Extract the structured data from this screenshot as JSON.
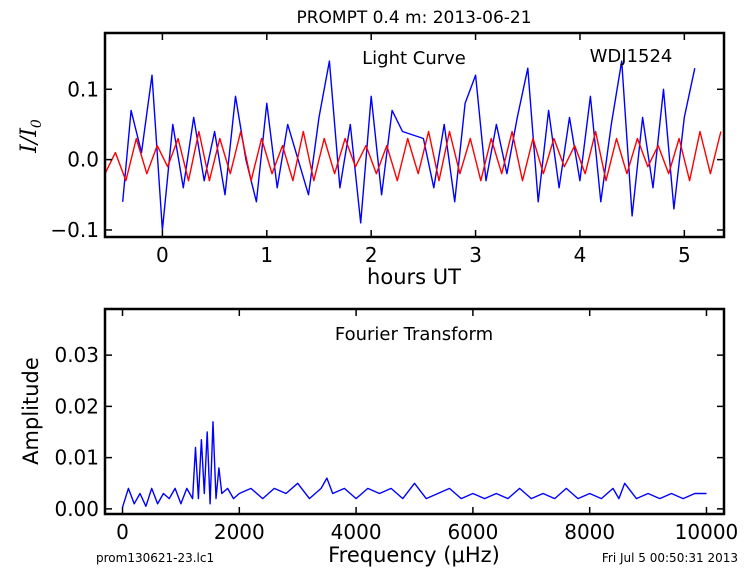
{
  "figure": {
    "title": "PROMPT 0.4 m:  2013-06-21",
    "filename": "prom130621-23.lc1",
    "timestamp": "Fri Jul  5 00:50:31 2013"
  },
  "chart_data": [
    {
      "type": "line",
      "title": "Light Curve",
      "annotation": "WDJ1524",
      "xlabel": "hours UT",
      "ylabel": "I/I0",
      "xlim": [
        -0.55,
        5.38
      ],
      "ylim": [
        -0.11,
        0.18
      ],
      "xticks": [
        0,
        1,
        2,
        3,
        4,
        5
      ],
      "yticks": [
        -0.1,
        0.0,
        0.1
      ],
      "ytick_labels": [
        "−0.1",
        "0.0",
        "0.1"
      ],
      "grid": false,
      "series": [
        {
          "color": "#0000ff",
          "x": [
            -0.38,
            -0.3,
            -0.2,
            -0.1,
            0.0,
            0.1,
            0.2,
            0.3,
            0.4,
            0.5,
            0.6,
            0.7,
            0.8,
            0.9,
            1.0,
            1.1,
            1.2,
            1.3,
            1.4,
            1.5,
            1.6,
            1.7,
            1.8,
            1.9,
            2.0,
            2.1,
            2.2,
            2.3,
            2.5,
            2.6,
            2.7,
            2.8,
            2.9,
            3.0,
            3.1,
            3.2,
            3.3,
            3.4,
            3.5,
            3.6,
            3.7,
            3.8,
            3.9,
            4.0,
            4.1,
            4.2,
            4.3,
            4.4,
            4.5,
            4.6,
            4.7,
            4.8,
            4.9,
            5.0,
            5.1
          ],
          "y": [
            -0.06,
            0.07,
            0.01,
            0.12,
            -0.1,
            0.05,
            -0.04,
            0.06,
            -0.03,
            0.04,
            -0.05,
            0.09,
            0.0,
            -0.06,
            0.08,
            -0.04,
            0.05,
            0.0,
            -0.05,
            0.06,
            0.14,
            -0.04,
            0.05,
            -0.09,
            0.09,
            -0.05,
            0.07,
            0.04,
            0.03,
            -0.04,
            0.05,
            -0.06,
            0.08,
            0.12,
            -0.03,
            0.05,
            -0.02,
            0.06,
            0.13,
            -0.06,
            0.07,
            -0.04,
            0.06,
            -0.03,
            0.09,
            -0.06,
            0.05,
            0.14,
            -0.08,
            0.06,
            -0.04,
            0.1,
            -0.07,
            0.06,
            0.13
          ]
        },
        {
          "color": "#ff0000",
          "x": [
            -0.55,
            -0.45,
            -0.35,
            -0.25,
            -0.15,
            -0.05,
            0.05,
            0.15,
            0.25,
            0.35,
            0.45,
            0.55,
            0.65,
            0.75,
            0.85,
            0.95,
            1.05,
            1.15,
            1.25,
            1.35,
            1.45,
            1.55,
            1.65,
            1.75,
            1.85,
            1.95,
            2.05,
            2.15,
            2.25,
            2.35,
            2.45,
            2.55,
            2.65,
            2.75,
            2.85,
            2.95,
            3.05,
            3.15,
            3.25,
            3.35,
            3.45,
            3.55,
            3.65,
            3.75,
            3.85,
            3.95,
            4.05,
            4.15,
            4.25,
            4.35,
            4.45,
            4.55,
            4.65,
            4.75,
            4.85,
            4.95,
            5.05,
            5.15,
            5.25,
            5.35
          ],
          "y": [
            -0.02,
            0.01,
            -0.03,
            0.03,
            -0.02,
            0.02,
            -0.01,
            0.03,
            -0.03,
            0.04,
            -0.03,
            0.03,
            -0.02,
            0.04,
            -0.03,
            0.03,
            -0.02,
            0.02,
            -0.03,
            0.04,
            -0.03,
            0.03,
            -0.02,
            0.03,
            -0.01,
            0.02,
            -0.02,
            0.02,
            -0.03,
            0.03,
            -0.02,
            0.04,
            -0.03,
            0.04,
            -0.02,
            0.03,
            -0.03,
            0.03,
            -0.02,
            0.04,
            -0.03,
            0.03,
            -0.02,
            0.03,
            -0.01,
            0.02,
            -0.02,
            0.04,
            -0.03,
            0.03,
            -0.02,
            0.03,
            -0.01,
            0.02,
            -0.02,
            0.03,
            -0.03,
            0.04,
            -0.02,
            0.04
          ]
        }
      ]
    },
    {
      "type": "line",
      "title": "Fourier Transform",
      "xlabel": "Frequency (μHz)",
      "ylabel": "Amplitude",
      "xlim": [
        -300,
        10300
      ],
      "ylim": [
        -0.001,
        0.039
      ],
      "xticks": [
        0,
        2000,
        4000,
        6000,
        8000,
        10000
      ],
      "yticks": [
        0.0,
        0.01,
        0.02,
        0.03
      ],
      "ytick_labels": [
        "0.00",
        "0.01",
        "0.02",
        "0.03"
      ],
      "grid": false,
      "series": [
        {
          "color": "#0000ff",
          "x": [
            0,
            100,
            200,
            300,
            400,
            500,
            600,
            700,
            800,
            900,
            1000,
            1100,
            1200,
            1250,
            1300,
            1350,
            1400,
            1450,
            1500,
            1550,
            1600,
            1650,
            1700,
            1800,
            1900,
            2000,
            2200,
            2400,
            2600,
            2800,
            3000,
            3200,
            3400,
            3500,
            3600,
            3800,
            4000,
            4200,
            4400,
            4600,
            4800,
            5000,
            5200,
            5400,
            5600,
            5800,
            6000,
            6200,
            6400,
            6600,
            6800,
            7000,
            7200,
            7400,
            7600,
            7800,
            8000,
            8200,
            8400,
            8500,
            8600,
            8800,
            9000,
            9200,
            9400,
            9600,
            9800,
            10000
          ],
          "y": [
            0.0003,
            0.004,
            0.001,
            0.003,
            0.0005,
            0.004,
            0.001,
            0.003,
            0.002,
            0.004,
            0.001,
            0.004,
            0.002,
            0.012,
            0.002,
            0.0135,
            0.003,
            0.015,
            0.001,
            0.017,
            0.002,
            0.008,
            0.003,
            0.004,
            0.002,
            0.003,
            0.004,
            0.002,
            0.004,
            0.003,
            0.005,
            0.002,
            0.004,
            0.006,
            0.003,
            0.004,
            0.002,
            0.004,
            0.003,
            0.004,
            0.002,
            0.005,
            0.002,
            0.003,
            0.004,
            0.002,
            0.003,
            0.002,
            0.003,
            0.002,
            0.004,
            0.002,
            0.003,
            0.002,
            0.004,
            0.002,
            0.003,
            0.002,
            0.004,
            0.002,
            0.005,
            0.002,
            0.003,
            0.002,
            0.003,
            0.002,
            0.003,
            0.003
          ]
        }
      ]
    }
  ]
}
